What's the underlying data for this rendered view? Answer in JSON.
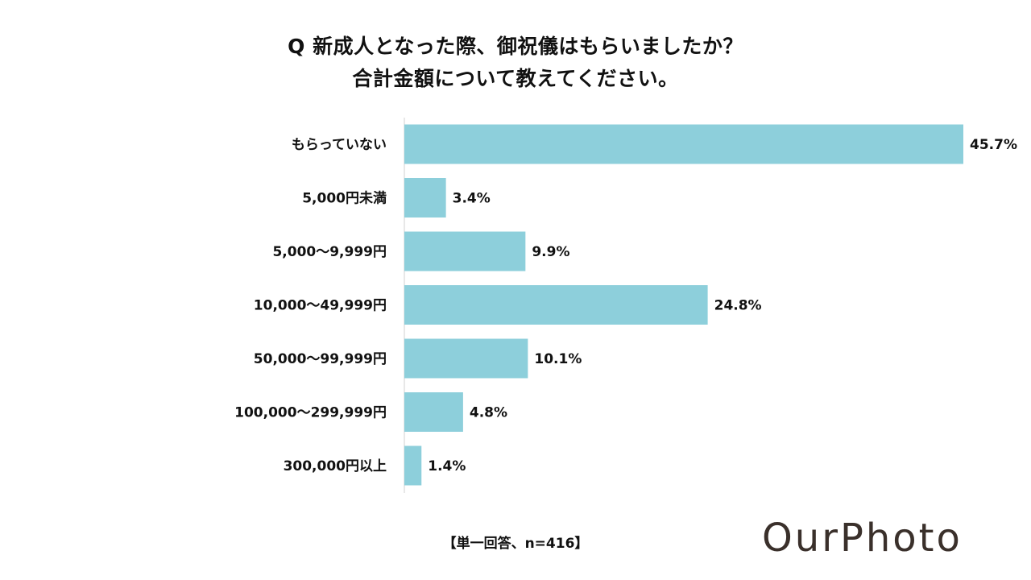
{
  "title": {
    "line1": "Q 新成人となった際、御祝儀はもらいましたか？",
    "line2": "合計金額について教えてください。"
  },
  "note": "【単一回答、n=416】",
  "logo": "OurPhoto",
  "colors": {
    "bar": "#8dcfdb",
    "axis": "#d0d0d0",
    "text": "#111111",
    "logo": "#3a302b"
  },
  "chart_data": {
    "type": "bar",
    "orientation": "horizontal",
    "title": "Q 新成人となった際、御祝儀はもらいましたか？ 合計金額について教えてください。",
    "categories": [
      "もらっていない",
      "5,000円未満",
      "5,000～9,999円",
      "10,000～49,999円",
      "50,000～99,999円",
      "100,000～299,999円",
      "300,000円以上"
    ],
    "values": [
      45.7,
      3.4,
      9.9,
      24.8,
      10.1,
      4.8,
      1.4
    ],
    "value_labels": [
      "45.7%",
      "3.4%",
      "9.9%",
      "24.8%",
      "10.1%",
      "4.8%",
      "1.4%"
    ],
    "unit": "%",
    "xlim": [
      0,
      45.7
    ],
    "xlabel": "",
    "ylabel": "",
    "grid": false,
    "legend": "none"
  }
}
